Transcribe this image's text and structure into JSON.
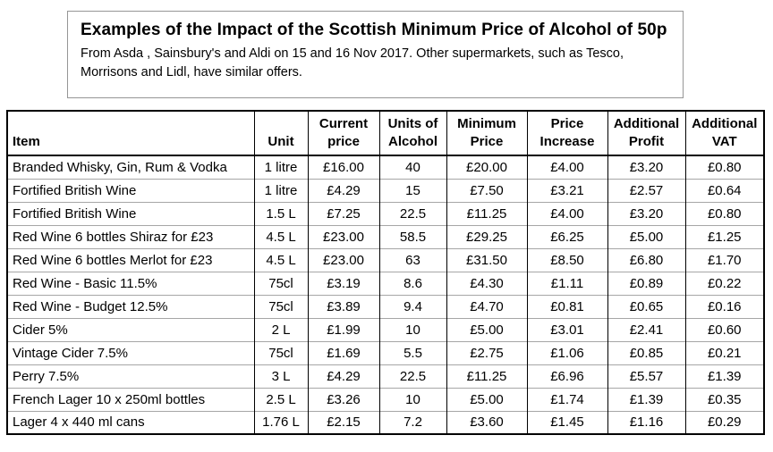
{
  "title_block": {
    "title": "Examples of the Impact of the Scottish Minimum Price of Alcohol of 50p",
    "subtitle_lines": [
      "From Asda , Sainsbury's and Aldi on 15 and 16 Nov 2017. Other supermarkets, such as Tesco,",
      "Morrisons  and Lidl, have similar offers."
    ]
  },
  "table": {
    "headers": [
      {
        "lines": [
          "Item"
        ],
        "align": "left"
      },
      {
        "lines": [
          "Unit"
        ],
        "align": "center"
      },
      {
        "lines": [
          "Current",
          "price"
        ],
        "align": "center"
      },
      {
        "lines": [
          "Units of",
          "Alcohol"
        ],
        "align": "center"
      },
      {
        "lines": [
          "Minimum",
          "Price"
        ],
        "align": "center"
      },
      {
        "lines": [
          "Price",
          "Increase"
        ],
        "align": "center"
      },
      {
        "lines": [
          "Additional",
          "Profit"
        ],
        "align": "center"
      },
      {
        "lines": [
          "Additional",
          "VAT"
        ],
        "align": "center"
      }
    ],
    "rows": [
      [
        "Branded Whisky, Gin, Rum & Vodka",
        "1 litre",
        "£16.00",
        "40",
        "£20.00",
        "£4.00",
        "£3.20",
        "£0.80"
      ],
      [
        "Fortified British Wine",
        "1 litre",
        "£4.29",
        "15",
        "£7.50",
        "£3.21",
        "£2.57",
        "£0.64"
      ],
      [
        "Fortified British Wine",
        "1.5 L",
        "£7.25",
        "22.5",
        "£11.25",
        "£4.00",
        "£3.20",
        "£0.80"
      ],
      [
        "Red Wine 6 bottles Shiraz for £23",
        "4.5 L",
        "£23.00",
        "58.5",
        "£29.25",
        "£6.25",
        "£5.00",
        "£1.25"
      ],
      [
        "Red Wine 6 bottles Merlot for £23",
        "4.5 L",
        "£23.00",
        "63",
        "£31.50",
        "£8.50",
        "£6.80",
        "£1.70"
      ],
      [
        "Red Wine - Basic 11.5%",
        "75cl",
        "£3.19",
        "8.6",
        "£4.30",
        "£1.11",
        "£0.89",
        "£0.22"
      ],
      [
        "Red Wine - Budget 12.5%",
        "75cl",
        "£3.89",
        "9.4",
        "£4.70",
        "£0.81",
        "£0.65",
        "£0.16"
      ],
      [
        "Cider 5%",
        "2 L",
        "£1.99",
        "10",
        "£5.00",
        "£3.01",
        "£2.41",
        "£0.60"
      ],
      [
        "Vintage Cider 7.5%",
        "75cl",
        "£1.69",
        "5.5",
        "£2.75",
        "£1.06",
        "£0.85",
        "£0.21"
      ],
      [
        "Perry 7.5%",
        "3 L",
        "£4.29",
        "22.5",
        "£11.25",
        "£6.96",
        "£5.57",
        "£1.39"
      ],
      [
        "French Lager 10 x 250ml bottles",
        "2.5 L",
        "£3.26",
        "10",
        "£5.00",
        "£1.74",
        "£1.39",
        "£0.35"
      ],
      [
        "Lager 4 x 440 ml cans",
        "1.76 L",
        "£2.15",
        "7.2",
        "£3.60",
        "£1.45",
        "£1.16",
        "£0.29"
      ]
    ]
  },
  "colors": {
    "text": "#000000",
    "table_border": "#000000",
    "row_separator": "#a6a6a6",
    "title_box_border": "#969696",
    "background": "#ffffff"
  }
}
